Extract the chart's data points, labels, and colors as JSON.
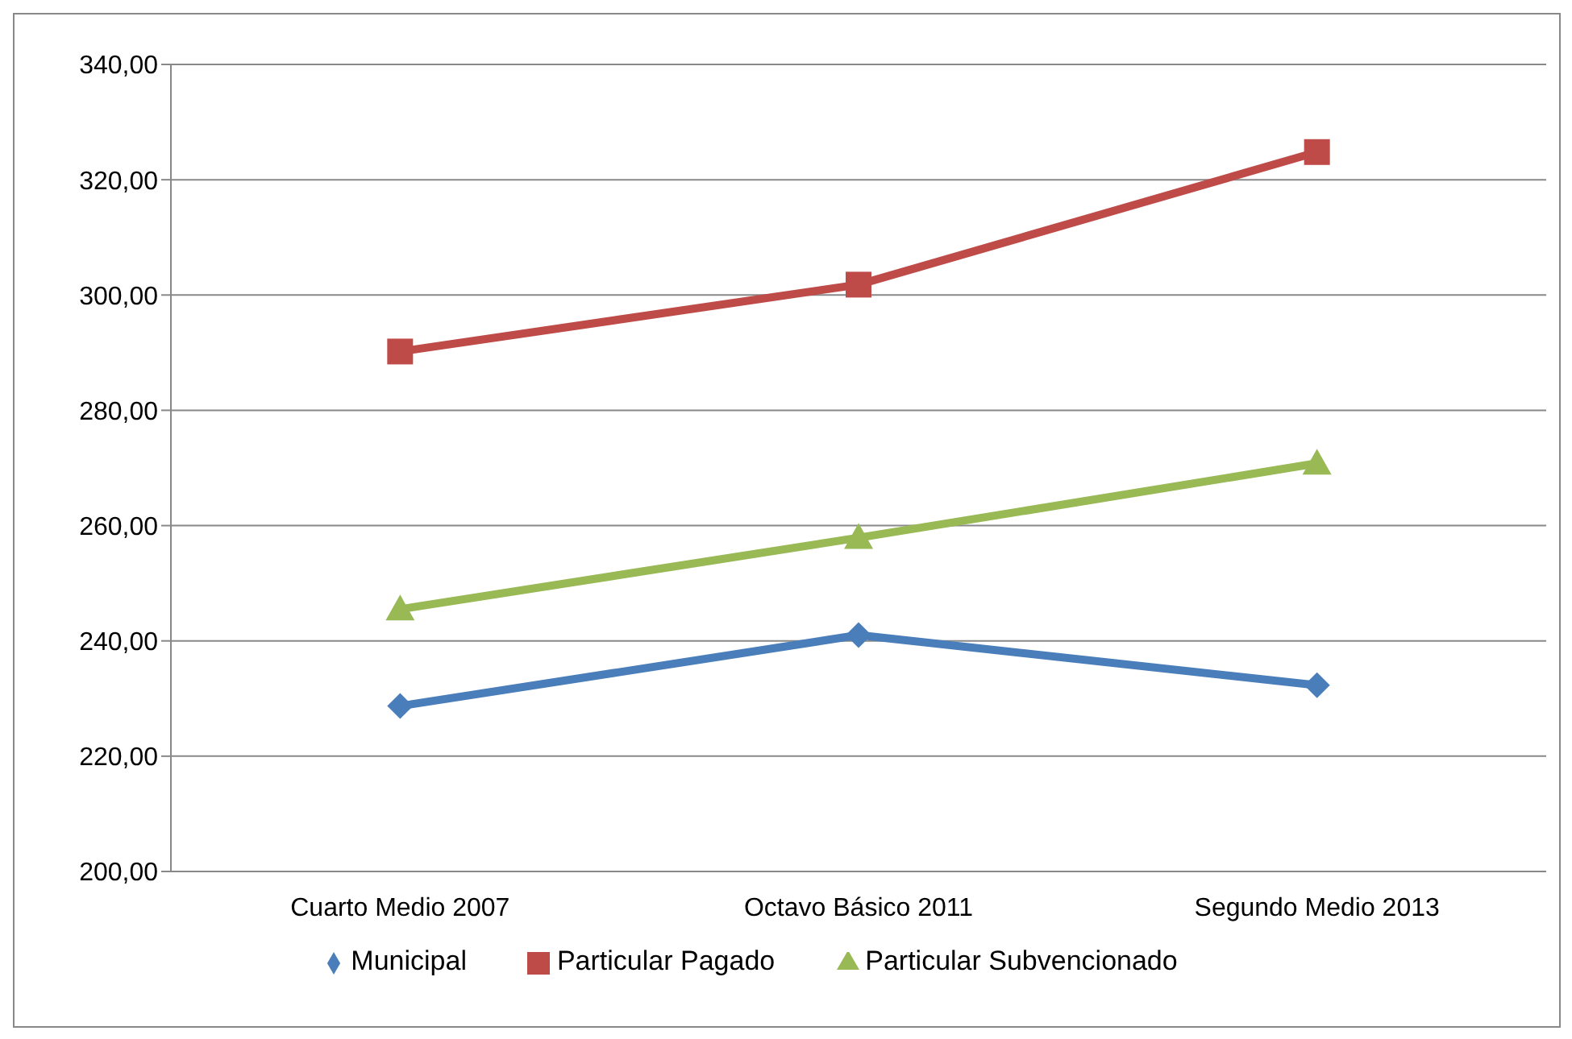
{
  "chart_data": {
    "type": "line",
    "categories": [
      "Cuarto Medio 2007",
      "Octavo Básico 2011",
      "Segundo Medio 2013"
    ],
    "series": [
      {
        "name": "Municipal",
        "color": "#4a7ebb",
        "marker": "diamond",
        "values": [
          228.7,
          241.0,
          232.3
        ]
      },
      {
        "name": "Particular Pagado",
        "color": "#be4b48",
        "marker": "square",
        "values": [
          290.2,
          301.8,
          324.8
        ]
      },
      {
        "name": "Particular Subvencionado",
        "color": "#98b954",
        "marker": "triangle",
        "values": [
          245.5,
          257.9,
          270.8
        ]
      }
    ],
    "ylim": [
      200,
      340
    ],
    "yticks": [
      {
        "value": 200,
        "label": "200,00"
      },
      {
        "value": 220,
        "label": "220,00"
      },
      {
        "value": 240,
        "label": "240,00"
      },
      {
        "value": 260,
        "label": "260,00"
      },
      {
        "value": 280,
        "label": "280,00"
      },
      {
        "value": 300,
        "label": "300,00"
      },
      {
        "value": 320,
        "label": "320,00"
      },
      {
        "value": 340,
        "label": "340,00"
      }
    ],
    "grid": "y",
    "legend": "bottom",
    "line_style": "solid"
  }
}
